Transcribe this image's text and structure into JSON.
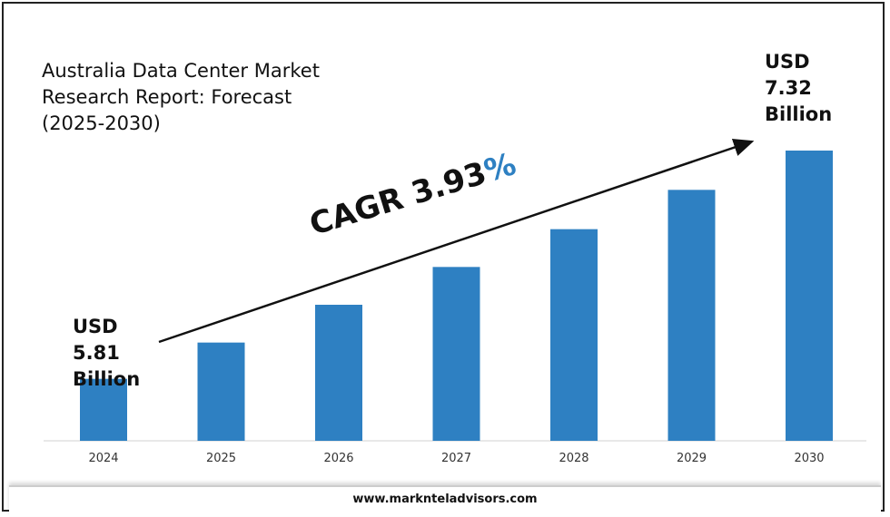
{
  "title_lines": [
    "Australia Data Center Market",
    "Research Report: Forecast",
    "(2025-2030)"
  ],
  "callouts": {
    "start": [
      "USD",
      "5.81",
      "Billion"
    ],
    "end": [
      "USD",
      "7.32",
      "Billion"
    ]
  },
  "cagr": {
    "label": "CAGR 3.93",
    "symbol": "%"
  },
  "footer": {
    "website": "www.marknteladvisors.com"
  },
  "colors": {
    "bar": "#2e80c2",
    "accent": "#2e80c2",
    "text": "#111111"
  },
  "chart_data": {
    "type": "bar",
    "categories": [
      "2024",
      "2025",
      "2026",
      "2027",
      "2028",
      "2029",
      "2030"
    ],
    "values": [
      5.81,
      6.05,
      6.3,
      6.55,
      6.8,
      7.06,
      7.32
    ],
    "title": "Australia Data Center Market Research Report: Forecast (2025-2030)",
    "xlabel": "",
    "ylabel": "",
    "ylim": [
      5.4,
      7.5
    ],
    "grid": false,
    "legend": "none",
    "annotations": [
      "USD 5.81 Billion",
      "USD 7.32 Billion",
      "CAGR 3.93%"
    ]
  }
}
